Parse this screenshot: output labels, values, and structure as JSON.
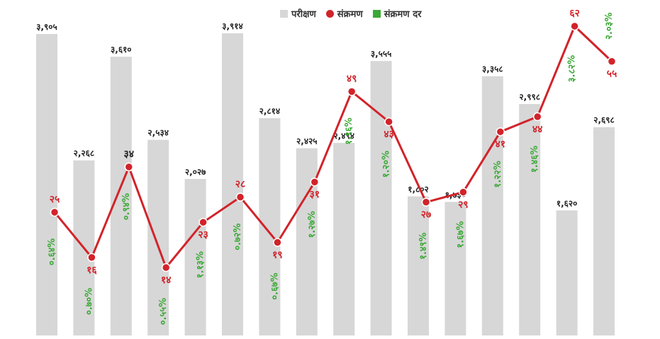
{
  "legend": {
    "tests_label": "परीक्षण",
    "infections_label": "संक्रमण",
    "rate_label": "संक्रमण दर"
  },
  "colors": {
    "bar": "#d7d7d7",
    "line": "#d2232a",
    "rate": "#3aa935",
    "highlight_label": "#222222"
  },
  "chart_data": {
    "type": "bar",
    "combo": "bar + line",
    "title": "",
    "xlabel": "",
    "ylabel": "",
    "grid": false,
    "legend_position": "top-center",
    "bar_ylim": [
      0,
      4000
    ],
    "line_ylim": [
      10,
      70
    ],
    "series": [
      {
        "name": "परीक्षण",
        "type": "bar",
        "values": [
          3905,
          2268,
          3610,
          2534,
          2027,
          3914,
          2814,
          2425,
          2494,
          3555,
          1802,
          1730,
          3358,
          2998,
          1620,
          2698
        ],
        "labels": [
          "३,९०५",
          "२,२६८",
          "३,६१०",
          "२,५३४",
          "२,०२७",
          "३,९१४",
          "२,८१४",
          "२,४२५",
          "२,४९४",
          "३,५५५",
          "१,८०२",
          "१,७३०",
          "३,३५८",
          "२,९९८",
          "१,६२०",
          "२,६९८"
        ]
      },
      {
        "name": "संक्रमण",
        "type": "line",
        "values": [
          25,
          16,
          34,
          14,
          23,
          28,
          19,
          31,
          49,
          43,
          27,
          29,
          41,
          44,
          62,
          55
        ],
        "labels": [
          "२५",
          "१६",
          "३४",
          "१४",
          "२३",
          "२८",
          "१९",
          "३१",
          "४९",
          "४३",
          "२७",
          "२९",
          "४१",
          "४४",
          "६२",
          "५५"
        ]
      },
      {
        "name": "संक्रमण दर",
        "type": "label",
        "values": [
          0.64,
          0.7,
          0.94,
          0.55,
          1.13,
          0.72,
          0.67,
          1.27,
          1.96,
          1.2,
          1.49,
          1.67,
          1.22,
          1.46,
          3.82,
          2.03
        ],
        "labels": [
          "०.६४%",
          "०.७०%",
          "०.९४%",
          "०.५५%",
          "१.१३%",
          "०.७२%",
          "०.६७%",
          "१.२७%",
          "१.९६%",
          "१.२०%",
          "१.४९%",
          "१.६७%",
          "१.२२%",
          "१.४६%",
          "३.८२%",
          "२.०३%"
        ]
      }
    ]
  }
}
